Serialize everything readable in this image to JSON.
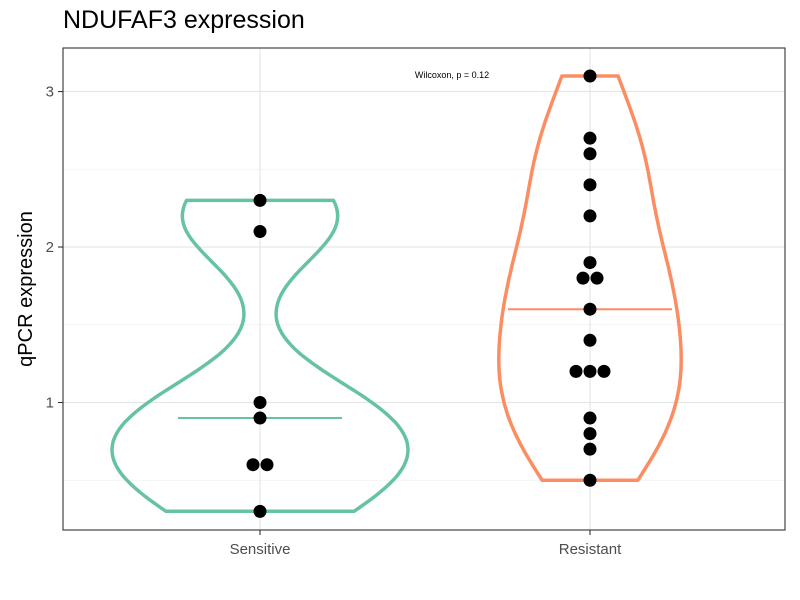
{
  "chart_data": {
    "type": "violin",
    "title": "NDUFAF3 expression",
    "xlabel": "",
    "ylabel": "qPCR expression",
    "ylim": [
      0.18,
      3.28
    ],
    "yticks": [
      1,
      2,
      3
    ],
    "ytick_labels": [
      "1",
      "2",
      "3"
    ],
    "categories": [
      "Sensitive",
      "Resistant"
    ],
    "annotation": "Wilcoxon, p = 0.12",
    "grid": true,
    "colors": {
      "Sensitive": "#66c2a5",
      "Resistant": "#fc8d62",
      "points": "#000000"
    },
    "groups": [
      {
        "name": "Sensitive",
        "median": 0.9,
        "points": [
          2.3,
          2.1,
          1.0,
          0.9,
          0.6,
          0.6,
          0.3
        ]
      },
      {
        "name": "Resistant",
        "median": 1.6,
        "points": [
          3.1,
          2.7,
          2.6,
          2.4,
          2.2,
          1.9,
          1.8,
          1.8,
          1.6,
          1.4,
          1.2,
          1.2,
          1.2,
          0.9,
          0.8,
          0.7,
          0.5
        ]
      }
    ]
  }
}
